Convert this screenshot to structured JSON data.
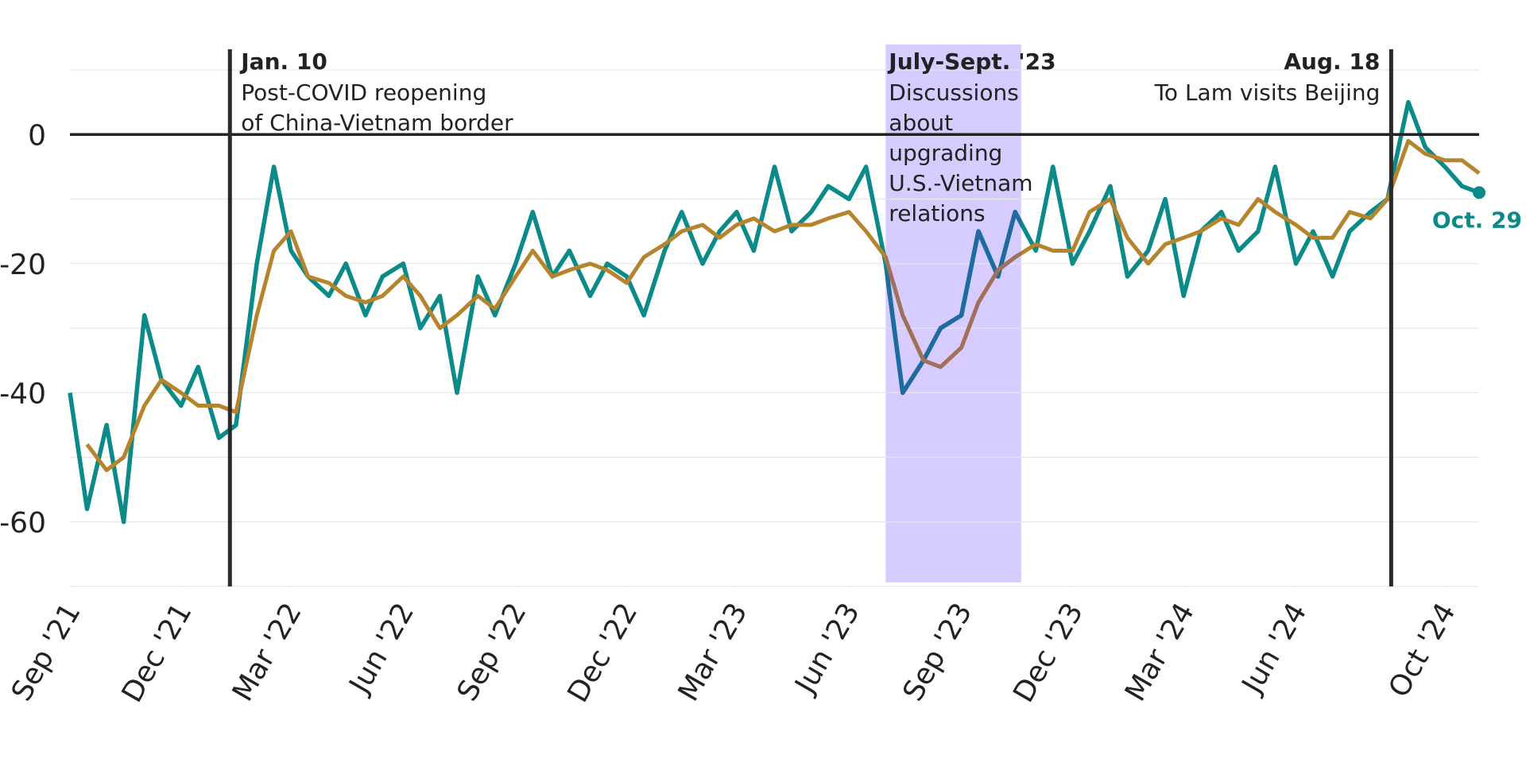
{
  "chart_data": {
    "type": "line",
    "x": [
      "2021-09-01",
      "2021-09-15",
      "2021-10-01",
      "2021-10-15",
      "2021-11-01",
      "2021-11-15",
      "2021-12-01",
      "2021-12-15",
      "2022-01-01",
      "2022-01-15",
      "2022-02-01",
      "2022-02-15",
      "2022-03-01",
      "2022-03-15",
      "2022-04-01",
      "2022-04-15",
      "2022-05-01",
      "2022-05-15",
      "2022-06-01",
      "2022-06-15",
      "2022-07-01",
      "2022-07-15",
      "2022-08-01",
      "2022-08-15",
      "2022-09-01",
      "2022-09-15",
      "2022-10-01",
      "2022-10-15",
      "2022-11-01",
      "2022-11-15",
      "2022-12-01",
      "2022-12-15",
      "2023-01-01",
      "2023-01-15",
      "2023-02-01",
      "2023-02-15",
      "2023-03-01",
      "2023-03-15",
      "2023-04-01",
      "2023-04-15",
      "2023-05-01",
      "2023-05-15",
      "2023-06-01",
      "2023-06-15",
      "2023-07-01",
      "2023-07-15",
      "2023-08-01",
      "2023-08-15",
      "2023-09-01",
      "2023-09-15",
      "2023-10-01",
      "2023-10-15",
      "2023-11-01",
      "2023-11-15",
      "2023-12-01",
      "2023-12-15",
      "2024-01-01",
      "2024-01-15",
      "2024-02-01",
      "2024-02-15",
      "2024-03-01",
      "2024-03-15",
      "2024-04-01",
      "2024-04-15",
      "2024-05-01",
      "2024-05-15",
      "2024-06-01",
      "2024-06-15",
      "2024-07-01",
      "2024-07-15",
      "2024-08-01",
      "2024-08-15",
      "2024-09-01",
      "2024-09-15",
      "2024-10-01",
      "2024-10-15",
      "2024-10-29"
    ],
    "series": [
      {
        "color": "#0b8a8a",
        "highlight_color": "#1f6a9e",
        "values": [
          -40,
          -58,
          -45,
          -60,
          -28,
          -38,
          -42,
          -36,
          -47,
          -45,
          -20,
          -5,
          -18,
          -22,
          -25,
          -20,
          -28,
          -22,
          -20,
          -30,
          -25,
          -40,
          -22,
          -28,
          -20,
          -12,
          -22,
          -18,
          -25,
          -20,
          -22,
          -28,
          -18,
          -12,
          -20,
          -15,
          -12,
          -18,
          -5,
          -15,
          -12,
          -8,
          -10,
          -5,
          -20,
          -40,
          -35,
          -30,
          -28,
          -15,
          -22,
          -12,
          -18,
          -5,
          -20,
          -15,
          -8,
          -22,
          -18,
          -10,
          -25,
          -15,
          -12,
          -18,
          -15,
          -5,
          -20,
          -15,
          -22,
          -15,
          -12,
          -10,
          5,
          -2,
          -5,
          -8,
          -9
        ]
      },
      {
        "color": "#b5842c",
        "highlight_color": "#a0705a",
        "values": [
          null,
          -48,
          -52,
          -50,
          -42,
          -38,
          -40,
          -42,
          -42,
          -43,
          -28,
          -18,
          -15,
          -22,
          -23,
          -25,
          -26,
          -25,
          -22,
          -25,
          -30,
          -28,
          -25,
          -27,
          -22,
          -18,
          -22,
          -21,
          -20,
          -21,
          -23,
          -19,
          -17,
          -15,
          -14,
          -16,
          -14,
          -13,
          -15,
          -14,
          -14,
          -13,
          -12,
          -15,
          -19,
          -28,
          -35,
          -36,
          -33,
          -26,
          -21,
          -19,
          -17,
          -18,
          -18,
          -12,
          -10,
          -16,
          -20,
          -17,
          -16,
          -15,
          -13,
          -14,
          -10,
          -12,
          -14,
          -16,
          -16,
          -12,
          -13,
          -10,
          -1,
          -3,
          -4,
          -4,
          -6
        ]
      }
    ],
    "xlim": [
      "2021-09-01",
      "2024-10-29"
    ],
    "xticks": [
      {
        "value": "2021-09-01",
        "label": "Sep '21"
      },
      {
        "value": "2021-12-01",
        "label": "Dec '21"
      },
      {
        "value": "2022-03-01",
        "label": "Mar '22"
      },
      {
        "value": "2022-06-01",
        "label": "Jun '22"
      },
      {
        "value": "2022-09-01",
        "label": "Sep '22"
      },
      {
        "value": "2022-12-01",
        "label": "Dec '22"
      },
      {
        "value": "2023-03-01",
        "label": "Mar '23"
      },
      {
        "value": "2023-06-01",
        "label": "Jun '23"
      },
      {
        "value": "2023-09-01",
        "label": "Sep '23"
      },
      {
        "value": "2023-12-01",
        "label": "Dec '23"
      },
      {
        "value": "2024-03-01",
        "label": "Mar '24"
      },
      {
        "value": "2024-06-01",
        "label": "Jun '24"
      },
      {
        "value": "2024-10-01",
        "label": "Oct '24"
      }
    ],
    "ylim": [
      -70,
      10
    ],
    "yticks": [
      0,
      -20,
      -40,
      -60
    ],
    "ygrid": [
      10,
      -10,
      -20,
      -30,
      -40,
      -50,
      -60,
      -70
    ],
    "zero_line": 0,
    "event_lines": [
      {
        "date": "2022-01-10",
        "title": "Jan. 10",
        "text": [
          "Post-COVID reopening",
          "of China-Vietnam border"
        ],
        "side": "right"
      },
      {
        "date": "2024-08-18",
        "title": "Aug. 18",
        "text": [
          "To Lam visits Beijing"
        ],
        "side": "left"
      }
    ],
    "band": {
      "start": "2023-07-01",
      "end": "2023-10-20",
      "color": "#d6ccff",
      "title": "July-Sept. '23",
      "text": [
        "Discussions",
        "about",
        "upgrading",
        "U.S.-Vietnam",
        "relations"
      ]
    },
    "end_label": "Oct. 29"
  }
}
